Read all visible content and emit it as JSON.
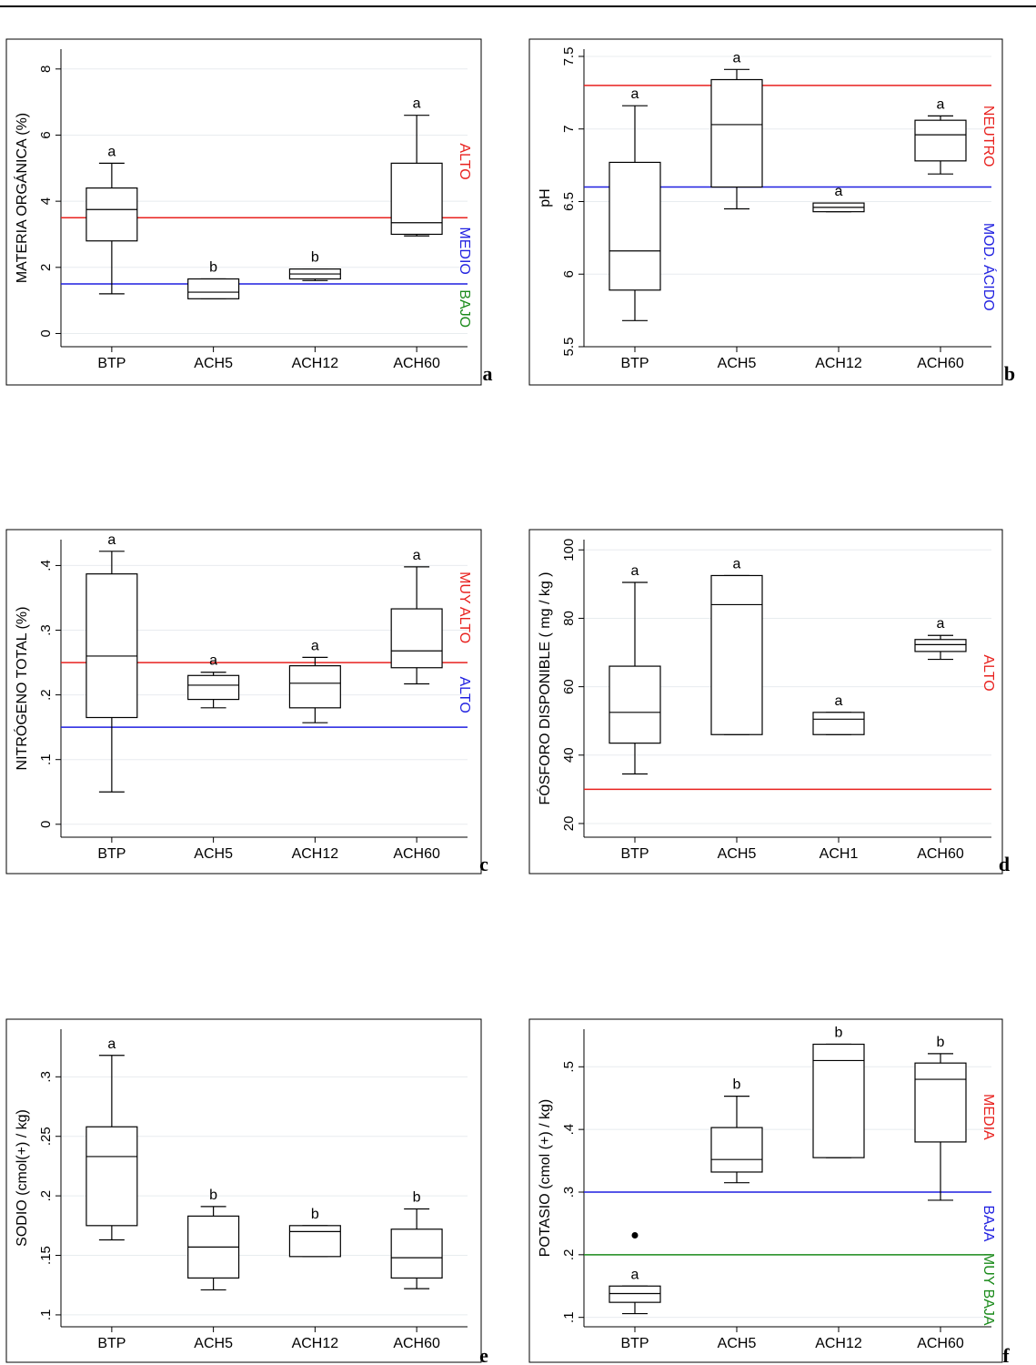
{
  "chart_data": [
    {
      "type": "box",
      "panel": "a",
      "ylabel": "MATERIA ORGÁNICA (%)",
      "categories": [
        "BTP",
        "ACH5",
        "ACH12",
        "ACH60"
      ],
      "ylim": [
        -0.4,
        8.6
      ],
      "yticks": [
        {
          "v": 0,
          "t": "0"
        },
        {
          "v": 2,
          "t": "2"
        },
        {
          "v": 4,
          "t": "4"
        },
        {
          "v": 6,
          "t": "6"
        },
        {
          "v": 8,
          "t": "8"
        }
      ],
      "boxes": [
        {
          "min": 1.2,
          "q1": 2.8,
          "median": 3.75,
          "q3": 4.4,
          "max": 5.15,
          "letter": "a"
        },
        {
          "min": 1.05,
          "q1": 1.05,
          "median": 1.25,
          "q3": 1.65,
          "max": 1.65,
          "letter": "b"
        },
        {
          "min": 1.6,
          "q1": 1.65,
          "median": 1.8,
          "q3": 1.95,
          "max": 1.95,
          "letter": "b"
        },
        {
          "min": 2.95,
          "q1": 3.0,
          "median": 3.35,
          "q3": 5.15,
          "max": 6.6,
          "letter": "a"
        }
      ],
      "hlines": [
        {
          "y": 3.5,
          "color": "#e8211e"
        },
        {
          "y": 1.5,
          "color": "#1f1fe0"
        }
      ],
      "zones": [
        {
          "text": "ALTO",
          "y": 5.2,
          "color": "#e8211e"
        },
        {
          "text": "MEDIO",
          "y": 2.5,
          "color": "#1f1fe0"
        },
        {
          "text": "BAJO",
          "y": 0.75,
          "color": "#1a8a1a"
        }
      ]
    },
    {
      "type": "box",
      "panel": "b",
      "ylabel": "pH",
      "categories": [
        "BTP",
        "ACH5",
        "ACH12",
        "ACH60"
      ],
      "ylim": [
        5.5,
        7.55
      ],
      "yticks": [
        {
          "v": 5.5,
          "t": "5.5"
        },
        {
          "v": 6,
          "t": "6"
        },
        {
          "v": 6.5,
          "t": "6.5"
        },
        {
          "v": 7,
          "t": "7"
        },
        {
          "v": 7.5,
          "t": "7.5"
        }
      ],
      "boxes": [
        {
          "min": 5.68,
          "q1": 5.89,
          "median": 6.16,
          "q3": 6.77,
          "max": 7.16,
          "letter": "a"
        },
        {
          "min": 6.45,
          "q1": 6.6,
          "median": 7.03,
          "q3": 7.34,
          "max": 7.41,
          "letter": "a"
        },
        {
          "min": 6.43,
          "q1": 6.43,
          "median": 6.46,
          "q3": 6.49,
          "max": 6.49,
          "letter": "a"
        },
        {
          "min": 6.69,
          "q1": 6.78,
          "median": 6.96,
          "q3": 7.06,
          "max": 7.09,
          "letter": "a"
        }
      ],
      "hlines": [
        {
          "y": 7.3,
          "color": "#e8211e"
        },
        {
          "y": 6.6,
          "color": "#1f1fe0"
        }
      ],
      "zones": [
        {
          "text": "NEUTRO",
          "y": 6.95,
          "color": "#e8211e"
        },
        {
          "text": "MOD. ÁCIDO",
          "y": 6.05,
          "color": "#1f1fe0"
        }
      ]
    },
    {
      "type": "box",
      "panel": "c",
      "ylabel": "NITRÓGENO TOTAL (%)",
      "categories": [
        "BTP",
        "ACH5",
        "ACH12",
        "ACH60"
      ],
      "ylim": [
        -0.02,
        0.44
      ],
      "yticks": [
        {
          "v": 0,
          "t": "0"
        },
        {
          "v": 0.1,
          "t": ".1"
        },
        {
          "v": 0.2,
          "t": ".2"
        },
        {
          "v": 0.3,
          "t": ".3"
        },
        {
          "v": 0.4,
          "t": ".4"
        }
      ],
      "boxes": [
        {
          "min": 0.05,
          "q1": 0.165,
          "median": 0.26,
          "q3": 0.387,
          "max": 0.422,
          "letter": "a"
        },
        {
          "min": 0.18,
          "q1": 0.193,
          "median": 0.215,
          "q3": 0.23,
          "max": 0.235,
          "letter": "a"
        },
        {
          "min": 0.157,
          "q1": 0.18,
          "median": 0.218,
          "q3": 0.245,
          "max": 0.258,
          "letter": "a"
        },
        {
          "min": 0.217,
          "q1": 0.242,
          "median": 0.268,
          "q3": 0.333,
          "max": 0.398,
          "letter": "a"
        }
      ],
      "hlines": [
        {
          "y": 0.25,
          "color": "#e8211e"
        },
        {
          "y": 0.15,
          "color": "#1f1fe0"
        }
      ],
      "zones": [
        {
          "text": "MUY ALTO",
          "y": 0.335,
          "color": "#e8211e"
        },
        {
          "text": "ALTO",
          "y": 0.2,
          "color": "#1f1fe0"
        }
      ]
    },
    {
      "type": "box",
      "panel": "d",
      "ylabel": "FÓSFORO DISPONIBLE  ( mg / kg )",
      "categories": [
        "BTP",
        "ACH5",
        "ACH1",
        "ACH60"
      ],
      "ylim": [
        16,
        103
      ],
      "yticks": [
        {
          "v": 20,
          "t": "20"
        },
        {
          "v": 40,
          "t": "40"
        },
        {
          "v": 60,
          "t": "60"
        },
        {
          "v": 80,
          "t": "80"
        },
        {
          "v": 100,
          "t": "100"
        }
      ],
      "boxes": [
        {
          "min": 34.5,
          "q1": 43.5,
          "median": 52.5,
          "q3": 66,
          "max": 90.5,
          "letter": "a"
        },
        {
          "min": 46,
          "q1": 46,
          "median": 84,
          "q3": 92.5,
          "max": 92.5,
          "letter": "a"
        },
        {
          "min": 46,
          "q1": 46,
          "median": 50.5,
          "q3": 52.5,
          "max": 52.5,
          "letter": "a"
        },
        {
          "min": 68,
          "q1": 70.3,
          "median": 72.3,
          "q3": 73.8,
          "max": 75,
          "letter": "a"
        }
      ],
      "hlines": [
        {
          "y": 30,
          "color": "#e8211e"
        }
      ],
      "zones": [
        {
          "text": "ALTO",
          "y": 64,
          "color": "#e8211e"
        }
      ]
    },
    {
      "type": "box",
      "panel": "e",
      "ylabel": "SODIO (cmol(+) / kg)",
      "categories": [
        "BTP",
        "ACH5",
        "ACH12",
        "ACH60"
      ],
      "ylim": [
        0.09,
        0.34
      ],
      "yticks": [
        {
          "v": 0.1,
          "t": ".1"
        },
        {
          "v": 0.15,
          "t": ".15"
        },
        {
          "v": 0.2,
          "t": ".2"
        },
        {
          "v": 0.25,
          "t": ".25"
        },
        {
          "v": 0.3,
          "t": ".3"
        }
      ],
      "boxes": [
        {
          "min": 0.163,
          "q1": 0.175,
          "median": 0.233,
          "q3": 0.258,
          "max": 0.318,
          "letter": "a"
        },
        {
          "min": 0.121,
          "q1": 0.131,
          "median": 0.157,
          "q3": 0.183,
          "max": 0.191,
          "letter": "b"
        },
        {
          "min": 0.149,
          "q1": 0.149,
          "median": 0.17,
          "q3": 0.175,
          "max": 0.175,
          "letter": "b"
        },
        {
          "min": 0.122,
          "q1": 0.131,
          "median": 0.148,
          "q3": 0.172,
          "max": 0.189,
          "letter": "b"
        }
      ],
      "hlines": [],
      "zones": []
    },
    {
      "type": "box",
      "panel": "f",
      "ylabel": "POTASIO  (cmol (+) / kg)",
      "categories": [
        "BTP",
        "ACH5",
        "ACH12",
        "ACH60"
      ],
      "ylim": [
        0.085,
        0.56
      ],
      "yticks": [
        {
          "v": 0.1,
          "t": ".1"
        },
        {
          "v": 0.2,
          "t": ".2"
        },
        {
          "v": 0.3,
          "t": ".3"
        },
        {
          "v": 0.4,
          "t": ".4"
        },
        {
          "v": 0.5,
          "t": ".5"
        }
      ],
      "boxes": [
        {
          "min": 0.106,
          "q1": 0.124,
          "median": 0.138,
          "q3": 0.15,
          "max": 0.15,
          "letter": "a",
          "outliers": [
            0.231
          ]
        },
        {
          "min": 0.315,
          "q1": 0.332,
          "median": 0.352,
          "q3": 0.403,
          "max": 0.453,
          "letter": "b"
        },
        {
          "min": 0.355,
          "q1": 0.355,
          "median": 0.51,
          "q3": 0.536,
          "max": 0.536,
          "letter": "b"
        },
        {
          "min": 0.287,
          "q1": 0.38,
          "median": 0.48,
          "q3": 0.506,
          "max": 0.521,
          "letter": "b"
        }
      ],
      "hlines": [
        {
          "y": 0.3,
          "color": "#1f1fe0"
        },
        {
          "y": 0.2,
          "color": "#1a8a1a"
        }
      ],
      "zones": [
        {
          "text": "MEDIA",
          "y": 0.42,
          "color": "#e8211e"
        },
        {
          "text": "BAJA",
          "y": 0.25,
          "color": "#1f1fe0"
        },
        {
          "text": "MUY BAJA",
          "y": 0.145,
          "color": "#1a8a1a"
        }
      ]
    }
  ]
}
